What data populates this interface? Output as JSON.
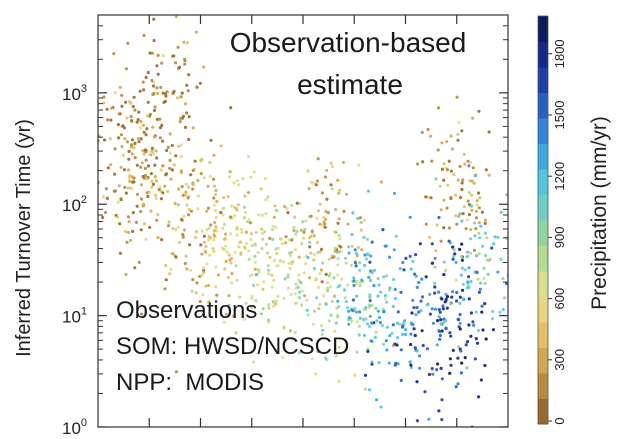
{
  "chart_data": {
    "type": "scatter",
    "title": "Observation-based estimate",
    "title_lines": [
      "Observation-based",
      "estimate"
    ],
    "xlabel": "",
    "ylabel": "Inferred Turnover Time (yr)",
    "yscale": "log",
    "ylim": [
      1,
      5000
    ],
    "xlim": [
      0,
      1
    ],
    "y_ticks": [
      {
        "value": 1,
        "base": "10",
        "exp": "0"
      },
      {
        "value": 10,
        "base": "10",
        "exp": "1"
      },
      {
        "value": 100,
        "base": "10",
        "exp": "2"
      },
      {
        "value": 1000,
        "base": "10",
        "exp": "3"
      }
    ],
    "x_tick_count": 7,
    "x_tick_labels": [],
    "annotations": [
      "Observations",
      "SOM: HWSD/NCSCD",
      "NPP:  MODIS"
    ],
    "colorbar": {
      "label": "Precipitation (mm/yr)",
      "ticks": [
        "0",
        "300",
        "600",
        "900",
        "1200",
        "1500",
        "1800"
      ],
      "range": [
        0,
        2000
      ],
      "colors": [
        "#9a6a2c",
        "#b88a3c",
        "#d4a84e",
        "#e2c063",
        "#e6d77e",
        "#d8e08a",
        "#b5dc8e",
        "#8fd5a2",
        "#6dd0c4",
        "#4fc7dd",
        "#3aa9e4",
        "#2e86dc",
        "#2561cc",
        "#1d3fae",
        "#15278a",
        "#0e1a5e"
      ]
    },
    "series": [
      {
        "clusters": [
          {
            "x": 0.07,
            "y": 300,
            "precip": 150
          },
          {
            "x": 0.12,
            "y": 150,
            "precip": 250
          },
          {
            "x": 0.16,
            "y": 1000,
            "precip": 120
          },
          {
            "x": 0.22,
            "y": 80,
            "precip": 350
          },
          {
            "x": 0.3,
            "y": 60,
            "precip": 500
          },
          {
            "x": 0.38,
            "y": 40,
            "precip": 600
          },
          {
            "x": 0.48,
            "y": 25,
            "precip": 700
          },
          {
            "x": 0.56,
            "y": 60,
            "precip": 300
          },
          {
            "x": 0.6,
            "y": 15,
            "precip": 900
          },
          {
            "x": 0.68,
            "y": 12,
            "precip": 1200
          },
          {
            "x": 0.78,
            "y": 10,
            "precip": 1500
          },
          {
            "x": 0.86,
            "y": 8,
            "precip": 1750
          },
          {
            "x": 0.88,
            "y": 150,
            "precip": 250
          },
          {
            "x": 0.93,
            "y": 30,
            "precip": 1100
          }
        ]
      }
    ]
  }
}
